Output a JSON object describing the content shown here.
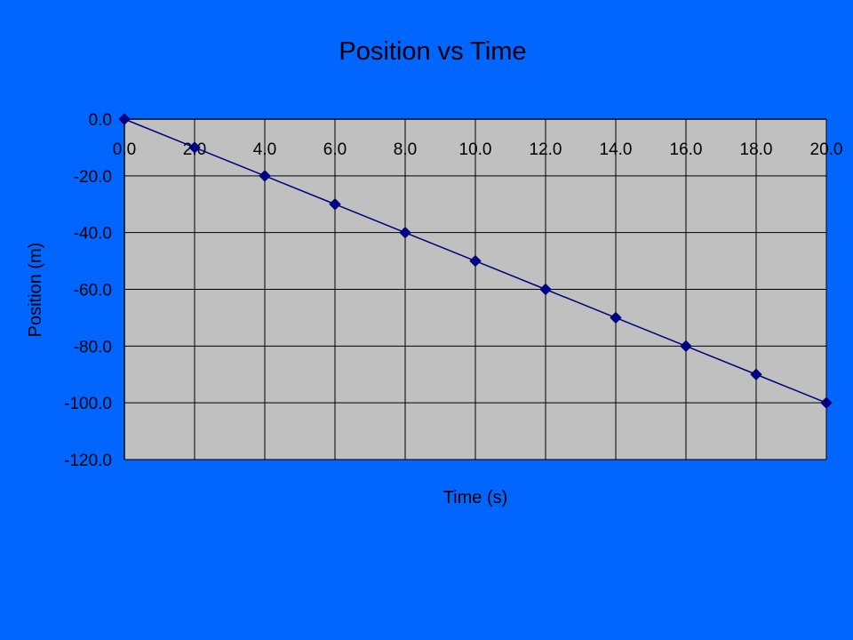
{
  "chart_data": {
    "type": "line",
    "title": "Position vs Time",
    "xlabel": "Time (s)",
    "ylabel": "Position (m)",
    "x": [
      0,
      2,
      4,
      6,
      8,
      10,
      12,
      14,
      16,
      18,
      20
    ],
    "series": [
      {
        "values": [
          0,
          -10,
          -20,
          -30,
          -40,
          -50,
          -60,
          -70,
          -80,
          -90,
          -100
        ]
      }
    ],
    "xlim": [
      0,
      20
    ],
    "ylim": [
      -120,
      0
    ],
    "x_ticks": [
      "0.0",
      "2.0",
      "4.0",
      "6.0",
      "8.0",
      "10.0",
      "12.0",
      "14.0",
      "16.0",
      "18.0",
      "20.0"
    ],
    "y_ticks": [
      "0.0",
      "-20.0",
      "-40.0",
      "-60.0",
      "-80.0",
      "-100.0",
      "-120.0"
    ],
    "grid": true,
    "x_axis_position": "top",
    "marker": "diamond",
    "colors": {
      "background": "#0066ff",
      "plot_area": "#c0c0c0",
      "line": "#000080",
      "grid": "#000000"
    }
  }
}
